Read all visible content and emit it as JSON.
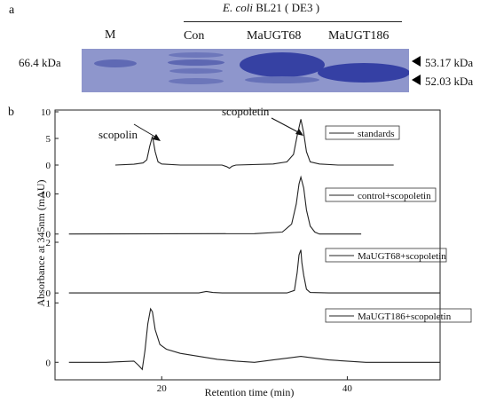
{
  "panel_a": {
    "label": "a",
    "header_italic": "E. coli",
    "header_rest": " BL21 ( DE3 )",
    "lanes": [
      "M",
      "Con",
      "MaUGT68",
      "MaUGT186"
    ],
    "marker_label": "66.4 kDa",
    "right_labels": [
      "53.17 kDa",
      "52.03 kDa"
    ]
  },
  "panel_b": {
    "label": "b",
    "ylabel": "Absorbance at 345nm (mAU)",
    "xlabel": "Retention time (min)",
    "annotations": [
      "scopolin",
      "scopoletin"
    ]
  },
  "chart_data": {
    "type": "line",
    "xlabel": "Retention time (min)",
    "ylabel": "Absorbance at 345nm (mAU)",
    "xlim": [
      8.5,
      50
    ],
    "xticks": [
      "20",
      "40"
    ],
    "series": [
      {
        "name": "standards",
        "ylim": [
          -1,
          10
        ],
        "yticks": [
          "0",
          "5",
          "10"
        ],
        "x": [
          15.0,
          17.0,
          18.0,
          18.4,
          18.7,
          19.0,
          19.3,
          19.6,
          20.0,
          22.0,
          26.5,
          27.0,
          27.3,
          27.6,
          28.0,
          32.0,
          33.5,
          34.2,
          34.6,
          35.0,
          35.3,
          35.6,
          36.0,
          37.0,
          39.0,
          45.0
        ],
        "values": [
          0,
          0.15,
          0.4,
          1.0,
          3.5,
          5.4,
          2.5,
          0.6,
          0.2,
          0,
          0,
          -0.3,
          -0.6,
          -0.2,
          0,
          0.2,
          0.6,
          2.0,
          5.5,
          8.6,
          6.0,
          2.5,
          0.6,
          0.2,
          0,
          0
        ]
      },
      {
        "name": "control+scopoletin",
        "ylim": [
          -0.5,
          15
        ],
        "yticks": [
          "0",
          "10"
        ],
        "x": [
          10.0,
          30.0,
          33.0,
          34.0,
          34.5,
          34.8,
          35.0,
          35.3,
          35.6,
          36.0,
          36.5,
          37.0,
          41.5
        ],
        "values": [
          0,
          0.1,
          0.5,
          2.5,
          7.5,
          12.5,
          14.2,
          11.5,
          6.0,
          2.0,
          0.5,
          0,
          0
        ]
      },
      {
        "name": "MaUGT68+scopoletin",
        "ylim": [
          -0.1,
          2
        ],
        "yticks": [
          "0",
          "2"
        ],
        "x": [
          10.0,
          24.0,
          24.8,
          25.5,
          26.5,
          33.5,
          34.3,
          34.6,
          34.8,
          35.0,
          35.1,
          35.3,
          35.6,
          36.0,
          38.0,
          50.0
        ],
        "values": [
          0,
          0,
          0.06,
          0.02,
          0,
          0,
          0.1,
          0.8,
          1.5,
          1.7,
          1.2,
          0.7,
          0.15,
          0.02,
          0,
          0
        ]
      },
      {
        "name": "MaUGT186+scopoletin",
        "ylim": [
          -0.25,
          1.05
        ],
        "yticks": [
          "0",
          "1"
        ],
        "x": [
          10.0,
          14.0,
          17.0,
          17.5,
          17.9,
          18.2,
          18.5,
          18.8,
          19.0,
          19.3,
          19.8,
          20.5,
          22.0,
          24.0,
          26.0,
          28.0,
          30.0,
          32.0,
          34.0,
          35.0,
          36.0,
          38.0,
          42.0,
          50.0
        ],
        "values": [
          0.0,
          0.0,
          0.02,
          -0.05,
          -0.12,
          0.2,
          0.65,
          0.9,
          0.85,
          0.55,
          0.3,
          0.22,
          0.15,
          0.1,
          0.05,
          0.02,
          0.0,
          0.04,
          0.08,
          0.1,
          0.08,
          0.04,
          0.0,
          0.0
        ]
      }
    ]
  }
}
